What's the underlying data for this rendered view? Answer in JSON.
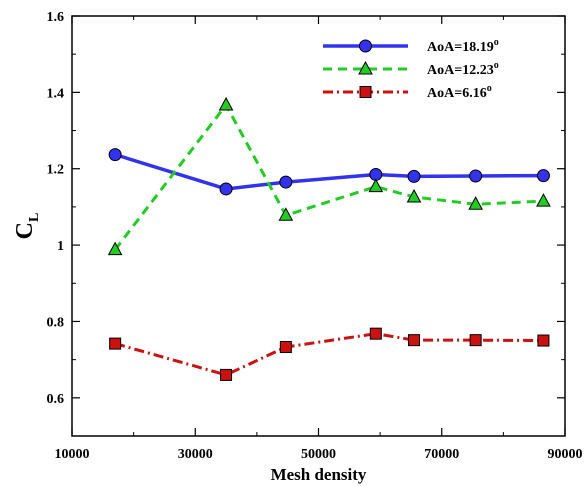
{
  "chart_data": {
    "type": "line",
    "xlabel": "Mesh density",
    "ylabel_main": "C",
    "ylabel_sub": "L",
    "xlim": [
      10000,
      90000
    ],
    "ylim": [
      0.5,
      1.6
    ],
    "x_ticks": [
      10000,
      30000,
      50000,
      70000,
      90000
    ],
    "x_tick_labels": [
      "10000",
      "30000",
      "50000",
      "70000",
      "90000"
    ],
    "y_ticks": [
      0.6,
      0.8,
      1.0,
      1.2,
      1.4,
      1.6
    ],
    "y_tick_labels": [
      "0.6",
      "0.8",
      "1",
      "1.2",
      "1.4",
      "1.6"
    ],
    "x": [
      17000,
      35000,
      44700,
      59300,
      65500,
      75500,
      86500
    ],
    "grid": false,
    "legend_position": "top-right",
    "legend_superscript": "o",
    "series": [
      {
        "name": "AoA=18.19",
        "values": [
          1.237,
          1.147,
          1.165,
          1.185,
          1.18,
          1.181,
          1.182
        ],
        "color": "#3333ee",
        "marker_fill": "#3333ee",
        "marker": "circle",
        "line_style": "solid"
      },
      {
        "name": "AoA=12.23",
        "values": [
          0.988,
          1.367,
          1.078,
          1.153,
          1.126,
          1.107,
          1.115
        ],
        "color": "#22cc22",
        "marker_fill": "#22cc22",
        "marker": "triangle",
        "line_style": "dashed"
      },
      {
        "name": "AoA=6.16",
        "values": [
          0.742,
          0.66,
          0.733,
          0.768,
          0.751,
          0.751,
          0.75
        ],
        "color": "#cc1111",
        "marker_fill": "#cc1111",
        "marker": "square",
        "line_style": "dashdot"
      }
    ]
  }
}
